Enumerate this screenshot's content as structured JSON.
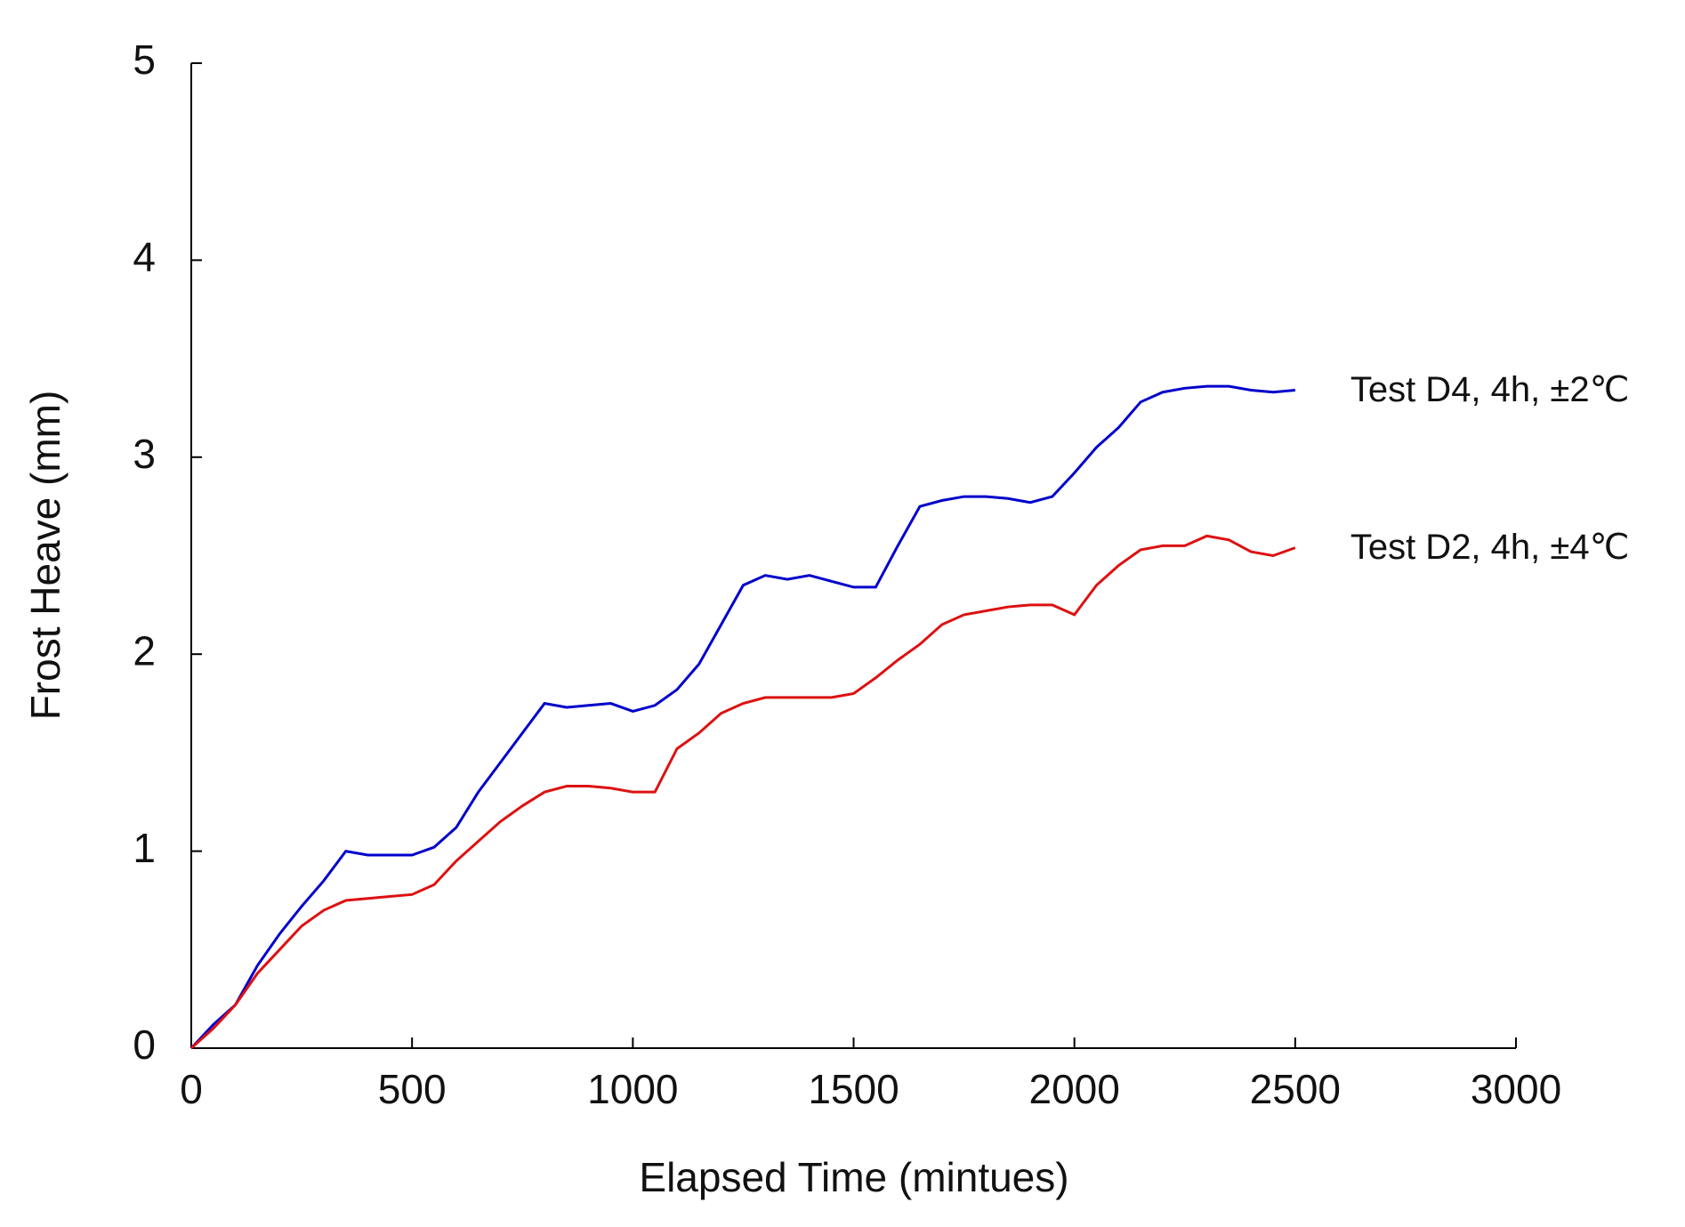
{
  "chart_data": {
    "type": "line",
    "x_label": "Elapsed Time (mintues)",
    "y_label": "Frost Heave (mm)",
    "x": [
      0,
      50,
      100,
      150,
      200,
      250,
      300,
      350,
      400,
      450,
      500,
      550,
      600,
      650,
      700,
      750,
      800,
      850,
      900,
      950,
      1000,
      1050,
      1100,
      1150,
      1200,
      1250,
      1300,
      1350,
      1400,
      1450,
      1500,
      1550,
      1600,
      1650,
      1700,
      1750,
      1800,
      1850,
      1900,
      1950,
      2000,
      2050,
      2100,
      2150,
      2200,
      2250,
      2300,
      2350,
      2400,
      2450,
      2500
    ],
    "series": [
      {
        "name": "Test D4, 4h, ±2℃",
        "color": "#0000cc",
        "values": [
          0,
          0.12,
          0.22,
          0.42,
          0.58,
          0.72,
          0.85,
          1.0,
          0.98,
          0.98,
          0.98,
          1.02,
          1.12,
          1.3,
          1.45,
          1.6,
          1.75,
          1.73,
          1.74,
          1.75,
          1.71,
          1.74,
          1.82,
          1.95,
          2.15,
          2.35,
          2.4,
          2.38,
          2.4,
          2.37,
          2.34,
          2.34,
          2.55,
          2.75,
          2.78,
          2.8,
          2.8,
          2.79,
          2.77,
          2.8,
          2.92,
          3.05,
          3.15,
          3.28,
          3.33,
          3.35,
          3.36,
          3.36,
          3.34,
          3.33,
          3.34
        ]
      },
      {
        "name": "Test D2, 4h, ±4℃",
        "color": "#dd1111",
        "values": [
          0,
          0.1,
          0.22,
          0.38,
          0.5,
          0.62,
          0.7,
          0.75,
          0.76,
          0.77,
          0.78,
          0.83,
          0.95,
          1.05,
          1.15,
          1.23,
          1.3,
          1.33,
          1.33,
          1.32,
          1.3,
          1.3,
          1.52,
          1.6,
          1.7,
          1.75,
          1.78,
          1.78,
          1.78,
          1.78,
          1.8,
          1.88,
          1.97,
          2.05,
          2.15,
          2.2,
          2.22,
          2.24,
          2.25,
          2.25,
          2.2,
          2.35,
          2.45,
          2.53,
          2.55,
          2.55,
          2.6,
          2.58,
          2.52,
          2.5,
          2.54
        ]
      }
    ],
    "xlim": [
      0,
      3000
    ],
    "xticks": [
      0,
      500,
      1000,
      1500,
      2000,
      2500,
      3000
    ],
    "ylim": [
      0,
      5
    ],
    "yticks": [
      0,
      1,
      2,
      3,
      4,
      5
    ],
    "grid": false
  }
}
